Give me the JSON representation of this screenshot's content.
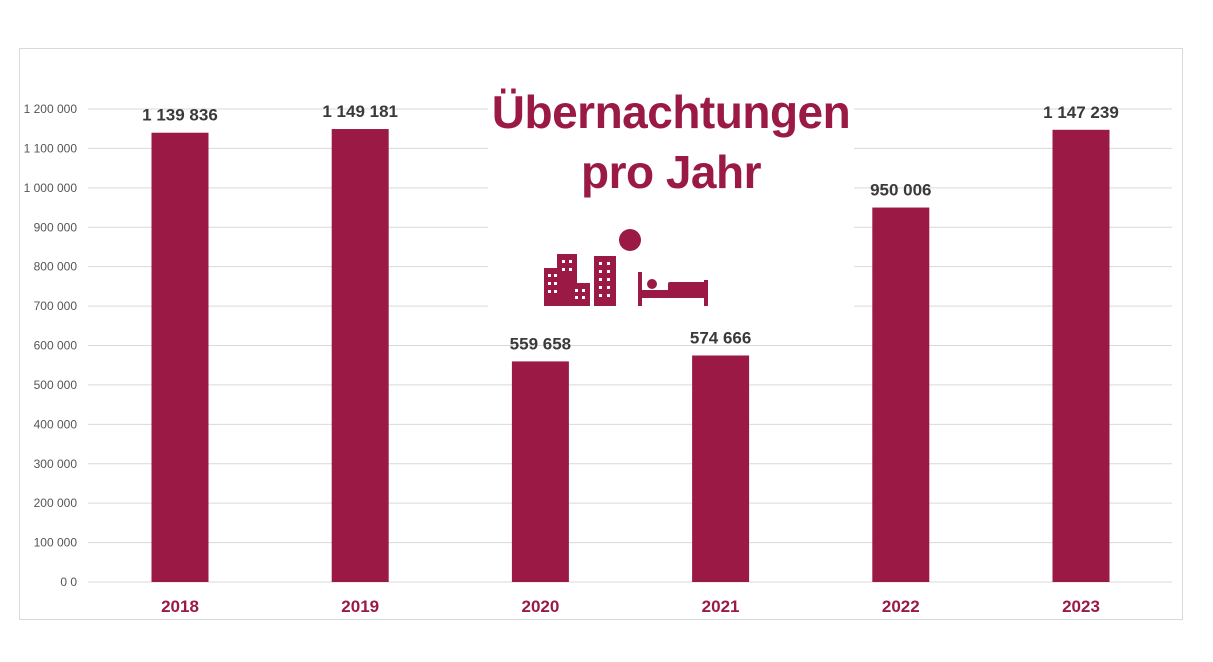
{
  "colors": {
    "bar": "#9b1945",
    "title": "#9b1945",
    "grid": "#d9d9d9"
  },
  "title": {
    "line1": "Übernachtungen",
    "line2": "pro Jahr"
  },
  "icon": "hotel-buildings-and-bed-icon",
  "chart_data": {
    "type": "bar",
    "title": "Übernachtungen pro Jahr",
    "xlabel": "",
    "ylabel": "",
    "categories": [
      "2018",
      "2019",
      "2020",
      "2021",
      "2022",
      "2023"
    ],
    "values": [
      1139836,
      1149181,
      559658,
      574666,
      950006,
      1147239
    ],
    "value_labels": [
      "1 139 836",
      "1 149 181",
      "559 658",
      "574 666",
      "950 006",
      "1 147 239"
    ],
    "ylim": [
      0,
      1200000
    ],
    "yticks": [
      0,
      100000,
      200000,
      300000,
      400000,
      500000,
      600000,
      700000,
      800000,
      900000,
      1000000,
      1100000,
      1200000
    ],
    "ytick_labels": [
      "0 0",
      "100 000",
      "200 000",
      "300 000",
      "400 000",
      "500 000",
      "600 000",
      "700 000",
      "800 000",
      "900 000",
      "1 000 000",
      "1 100 000",
      "1 200 000"
    ],
    "grid": true,
    "legend": "none"
  }
}
